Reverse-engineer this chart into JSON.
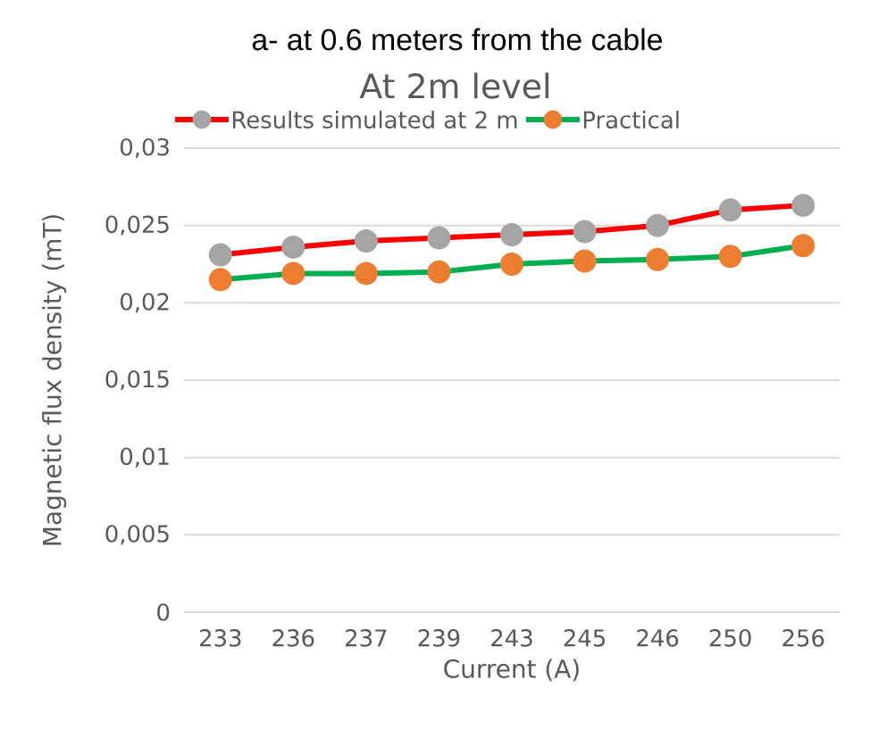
{
  "chart_data": {
    "type": "line",
    "title": "a- at 0.6 meters from the cable",
    "subtitle": "At 2m level",
    "xlabel": "Current (A)",
    "ylabel": "Magnetic flux density (mT)",
    "categories": [
      "233",
      "236",
      "237",
      "239",
      "243",
      "245",
      "246",
      "250",
      "256"
    ],
    "series": [
      {
        "name": "Results simulated at 2 m",
        "color": "#ff0000",
        "colors": [
          "#a5a5a5",
          "#a5a5a5",
          "#a5a5a5",
          "#a5a5a5",
          "#a5a5a5",
          "#a5a5a5",
          "#a5a5a5",
          "#a5a5a5",
          "#a5a5a5"
        ],
        "values": [
          0.0231,
          0.0236,
          0.024,
          0.0242,
          0.0244,
          0.0246,
          0.025,
          0.026,
          0.0263
        ]
      },
      {
        "name": "Practical",
        "color": "#00b050",
        "colors": [
          "#ed7d31",
          "#ed7d31",
          "#ed7d31",
          "#ed7d31",
          "#ed7d31",
          "#ed7d31",
          "#ed7d31",
          "#ed7d31",
          "#ed7d31"
        ],
        "values": [
          0.0215,
          0.0219,
          0.0219,
          0.022,
          0.0225,
          0.0227,
          0.0228,
          0.023,
          0.0237
        ]
      }
    ],
    "ylim": [
      0,
      0.03
    ],
    "yticks": [
      {
        "value": 0,
        "label": "0"
      },
      {
        "value": 0.005,
        "label": "0,005"
      },
      {
        "value": 0.01,
        "label": "0,01"
      },
      {
        "value": 0.015,
        "label": "0,015"
      },
      {
        "value": 0.02,
        "label": "0,02"
      },
      {
        "value": 0.025,
        "label": "0,025"
      },
      {
        "value": 0.03,
        "label": "0,03"
      }
    ],
    "grid": "y",
    "legend": "top",
    "marker": "circle",
    "line_style": "solid"
  }
}
